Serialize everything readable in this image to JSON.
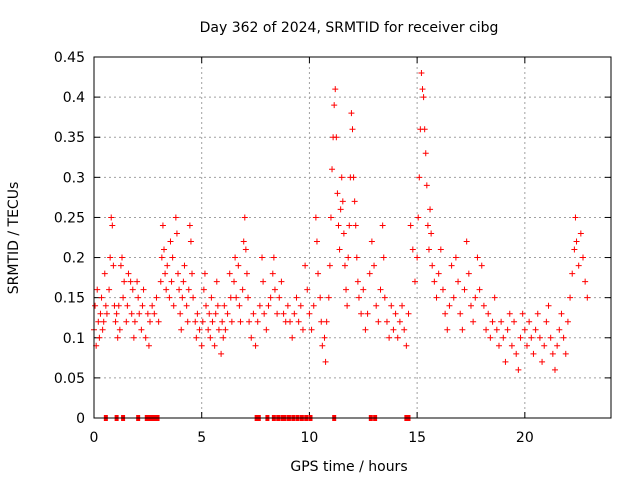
{
  "chart_data": {
    "type": "scatter",
    "title": "Day 362 of 2024, SRMTID for receiver cibg",
    "xlabel": "GPS time / hours",
    "ylabel": "SRMTID / TECUs",
    "xlim": [
      0,
      24
    ],
    "ylim": [
      0,
      0.45
    ],
    "xticks": [
      0,
      5,
      10,
      15,
      20
    ],
    "xtick_labels": [
      "0",
      "5",
      "10",
      "15",
      "20"
    ],
    "yticks": [
      0,
      0.05,
      0.1,
      0.15,
      0.2,
      0.25,
      0.3,
      0.35,
      0.4,
      0.45
    ],
    "ytick_labels": [
      "0",
      "0.05",
      "0.1",
      "0.15",
      "0.2",
      "0.25",
      "0.3",
      "0.35",
      "0.4",
      "0.45"
    ],
    "grid": true,
    "marker": "+",
    "color": "#ff0000",
    "series": [
      {
        "name": "SRMTID",
        "points": [
          [
            0.0,
            0.11
          ],
          [
            0.05,
            0.14
          ],
          [
            0.1,
            0.09
          ],
          [
            0.15,
            0.16
          ],
          [
            0.2,
            0.12
          ],
          [
            0.25,
            0.1
          ],
          [
            0.3,
            0.13
          ],
          [
            0.35,
            0.15
          ],
          [
            0.4,
            0.11
          ],
          [
            0.45,
            0.12
          ],
          [
            0.5,
            0.18
          ],
          [
            0.55,
            0.14
          ],
          [
            0.6,
            0.13
          ],
          [
            0.7,
            0.16
          ],
          [
            0.75,
            0.2
          ],
          [
            0.8,
            0.25
          ],
          [
            0.85,
            0.24
          ],
          [
            0.9,
            0.19
          ],
          [
            0.95,
            0.14
          ],
          [
            1.0,
            0.12
          ],
          [
            1.05,
            0.13
          ],
          [
            1.1,
            0.1
          ],
          [
            1.15,
            0.14
          ],
          [
            1.2,
            0.11
          ],
          [
            1.25,
            0.19
          ],
          [
            1.3,
            0.2
          ],
          [
            1.35,
            0.15
          ],
          [
            1.4,
            0.17
          ],
          [
            1.5,
            0.12
          ],
          [
            1.55,
            0.14
          ],
          [
            1.6,
            0.18
          ],
          [
            1.7,
            0.17
          ],
          [
            1.75,
            0.13
          ],
          [
            1.8,
            0.16
          ],
          [
            1.85,
            0.1
          ],
          [
            1.9,
            0.12
          ],
          [
            2.0,
            0.17
          ],
          [
            2.05,
            0.15
          ],
          [
            2.1,
            0.13
          ],
          [
            2.2,
            0.11
          ],
          [
            2.25,
            0.14
          ],
          [
            2.3,
            0.16
          ],
          [
            2.4,
            0.1
          ],
          [
            2.5,
            0.13
          ],
          [
            2.55,
            0.09
          ],
          [
            2.6,
            0.12
          ],
          [
            2.7,
            0.14
          ],
          [
            2.8,
            0.13
          ],
          [
            2.9,
            0.15
          ],
          [
            3.0,
            0.12
          ],
          [
            3.1,
            0.17
          ],
          [
            3.15,
            0.2
          ],
          [
            3.2,
            0.24
          ],
          [
            3.25,
            0.21
          ],
          [
            3.3,
            0.18
          ],
          [
            3.35,
            0.16
          ],
          [
            3.4,
            0.19
          ],
          [
            3.5,
            0.15
          ],
          [
            3.55,
            0.22
          ],
          [
            3.6,
            0.17
          ],
          [
            3.65,
            0.2
          ],
          [
            3.7,
            0.14
          ],
          [
            3.8,
            0.25
          ],
          [
            3.85,
            0.23
          ],
          [
            3.9,
            0.18
          ],
          [
            3.95,
            0.16
          ],
          [
            4.0,
            0.13
          ],
          [
            4.05,
            0.11
          ],
          [
            4.1,
            0.15
          ],
          [
            4.15,
            0.17
          ],
          [
            4.2,
            0.19
          ],
          [
            4.3,
            0.14
          ],
          [
            4.35,
            0.12
          ],
          [
            4.4,
            0.16
          ],
          [
            4.45,
            0.24
          ],
          [
            4.5,
            0.22
          ],
          [
            4.55,
            0.18
          ],
          [
            4.6,
            0.15
          ],
          [
            4.7,
            0.12
          ],
          [
            4.75,
            0.1
          ],
          [
            4.8,
            0.13
          ],
          [
            4.9,
            0.11
          ],
          [
            5.0,
            0.09
          ],
          [
            5.05,
            0.12
          ],
          [
            5.1,
            0.16
          ],
          [
            5.15,
            0.18
          ],
          [
            5.2,
            0.14
          ],
          [
            5.3,
            0.11
          ],
          [
            5.35,
            0.13
          ],
          [
            5.4,
            0.1
          ],
          [
            5.45,
            0.15
          ],
          [
            5.5,
            0.12
          ],
          [
            5.6,
            0.09
          ],
          [
            5.65,
            0.13
          ],
          [
            5.7,
            0.17
          ],
          [
            5.75,
            0.14
          ],
          [
            5.8,
            0.11
          ],
          [
            5.9,
            0.08
          ],
          [
            5.95,
            0.12
          ],
          [
            6.0,
            0.1
          ],
          [
            6.05,
            0.14
          ],
          [
            6.1,
            0.11
          ],
          [
            6.2,
            0.13
          ],
          [
            6.3,
            0.18
          ],
          [
            6.35,
            0.15
          ],
          [
            6.4,
            0.12
          ],
          [
            6.5,
            0.17
          ],
          [
            6.55,
            0.2
          ],
          [
            6.6,
            0.15
          ],
          [
            6.7,
            0.19
          ],
          [
            6.75,
            0.14
          ],
          [
            6.8,
            0.12
          ],
          [
            6.9,
            0.16
          ],
          [
            6.95,
            0.22
          ],
          [
            7.0,
            0.25
          ],
          [
            7.05,
            0.21
          ],
          [
            7.1,
            0.18
          ],
          [
            7.15,
            0.15
          ],
          [
            7.2,
            0.12
          ],
          [
            7.3,
            0.1
          ],
          [
            7.4,
            0.13
          ],
          [
            7.5,
            0.09
          ],
          [
            7.6,
            0.12
          ],
          [
            7.7,
            0.14
          ],
          [
            7.8,
            0.2
          ],
          [
            7.85,
            0.17
          ],
          [
            7.9,
            0.13
          ],
          [
            8.0,
            0.11
          ],
          [
            8.1,
            0.14
          ],
          [
            8.2,
            0.15
          ],
          [
            8.3,
            0.18
          ],
          [
            8.35,
            0.2
          ],
          [
            8.4,
            0.16
          ],
          [
            8.5,
            0.13
          ],
          [
            8.6,
            0.15
          ],
          [
            8.7,
            0.17
          ],
          [
            8.8,
            0.13
          ],
          [
            8.9,
            0.12
          ],
          [
            9.0,
            0.14
          ],
          [
            9.1,
            0.12
          ],
          [
            9.2,
            0.1
          ],
          [
            9.3,
            0.13
          ],
          [
            9.4,
            0.15
          ],
          [
            9.5,
            0.12
          ],
          [
            9.6,
            0.14
          ],
          [
            9.7,
            0.11
          ],
          [
            9.8,
            0.19
          ],
          [
            9.9,
            0.16
          ],
          [
            10.0,
            0.13
          ],
          [
            10.1,
            0.11
          ],
          [
            10.2,
            0.14
          ],
          [
            10.3,
            0.25
          ],
          [
            10.35,
            0.22
          ],
          [
            10.4,
            0.18
          ],
          [
            10.5,
            0.15
          ],
          [
            10.55,
            0.12
          ],
          [
            10.6,
            0.09
          ],
          [
            10.7,
            0.1
          ],
          [
            10.75,
            0.07
          ],
          [
            10.8,
            0.12
          ],
          [
            10.9,
            0.15
          ],
          [
            10.95,
            0.19
          ],
          [
            11.0,
            0.25
          ],
          [
            11.05,
            0.31
          ],
          [
            11.1,
            0.35
          ],
          [
            11.15,
            0.39
          ],
          [
            11.2,
            0.41
          ],
          [
            11.25,
            0.35
          ],
          [
            11.3,
            0.28
          ],
          [
            11.35,
            0.24
          ],
          [
            11.4,
            0.21
          ],
          [
            11.45,
            0.26
          ],
          [
            11.5,
            0.3
          ],
          [
            11.55,
            0.27
          ],
          [
            11.6,
            0.23
          ],
          [
            11.65,
            0.19
          ],
          [
            11.7,
            0.16
          ],
          [
            11.75,
            0.14
          ],
          [
            11.8,
            0.2
          ],
          [
            11.85,
            0.24
          ],
          [
            11.9,
            0.3
          ],
          [
            11.95,
            0.38
          ],
          [
            12.0,
            0.36
          ],
          [
            12.05,
            0.3
          ],
          [
            12.1,
            0.27
          ],
          [
            12.15,
            0.24
          ],
          [
            12.2,
            0.2
          ],
          [
            12.25,
            0.17
          ],
          [
            12.3,
            0.15
          ],
          [
            12.4,
            0.13
          ],
          [
            12.5,
            0.16
          ],
          [
            12.6,
            0.11
          ],
          [
            12.7,
            0.13
          ],
          [
            12.8,
            0.18
          ],
          [
            12.9,
            0.22
          ],
          [
            13.0,
            0.19
          ],
          [
            13.1,
            0.14
          ],
          [
            13.2,
            0.12
          ],
          [
            13.3,
            0.16
          ],
          [
            13.4,
            0.24
          ],
          [
            13.45,
            0.2
          ],
          [
            13.5,
            0.15
          ],
          [
            13.6,
            0.12
          ],
          [
            13.7,
            0.1
          ],
          [
            13.8,
            0.14
          ],
          [
            13.9,
            0.11
          ],
          [
            14.0,
            0.13
          ],
          [
            14.1,
            0.1
          ],
          [
            14.2,
            0.12
          ],
          [
            14.3,
            0.14
          ],
          [
            14.4,
            0.11
          ],
          [
            14.5,
            0.09
          ],
          [
            14.6,
            0.13
          ],
          [
            14.7,
            0.24
          ],
          [
            14.8,
            0.21
          ],
          [
            14.9,
            0.17
          ],
          [
            15.0,
            0.2
          ],
          [
            15.05,
            0.25
          ],
          [
            15.1,
            0.3
          ],
          [
            15.15,
            0.36
          ],
          [
            15.2,
            0.43
          ],
          [
            15.25,
            0.41
          ],
          [
            15.3,
            0.4
          ],
          [
            15.35,
            0.36
          ],
          [
            15.4,
            0.33
          ],
          [
            15.45,
            0.29
          ],
          [
            15.5,
            0.24
          ],
          [
            15.55,
            0.21
          ],
          [
            15.6,
            0.26
          ],
          [
            15.65,
            0.23
          ],
          [
            15.7,
            0.19
          ],
          [
            15.8,
            0.17
          ],
          [
            15.9,
            0.15
          ],
          [
            16.0,
            0.18
          ],
          [
            16.1,
            0.21
          ],
          [
            16.2,
            0.16
          ],
          [
            16.3,
            0.13
          ],
          [
            16.4,
            0.11
          ],
          [
            16.5,
            0.14
          ],
          [
            16.6,
            0.19
          ],
          [
            16.7,
            0.15
          ],
          [
            16.8,
            0.2
          ],
          [
            16.9,
            0.17
          ],
          [
            17.0,
            0.13
          ],
          [
            17.1,
            0.11
          ],
          [
            17.2,
            0.16
          ],
          [
            17.3,
            0.22
          ],
          [
            17.4,
            0.18
          ],
          [
            17.5,
            0.14
          ],
          [
            17.6,
            0.12
          ],
          [
            17.7,
            0.15
          ],
          [
            17.8,
            0.2
          ],
          [
            17.9,
            0.16
          ],
          [
            18.0,
            0.19
          ],
          [
            18.1,
            0.14
          ],
          [
            18.2,
            0.11
          ],
          [
            18.3,
            0.13
          ],
          [
            18.4,
            0.1
          ],
          [
            18.5,
            0.12
          ],
          [
            18.6,
            0.15
          ],
          [
            18.7,
            0.11
          ],
          [
            18.8,
            0.09
          ],
          [
            18.9,
            0.12
          ],
          [
            19.0,
            0.1
          ],
          [
            19.1,
            0.07
          ],
          [
            19.2,
            0.11
          ],
          [
            19.3,
            0.13
          ],
          [
            19.4,
            0.09
          ],
          [
            19.5,
            0.12
          ],
          [
            19.6,
            0.08
          ],
          [
            19.7,
            0.06
          ],
          [
            19.8,
            0.1
          ],
          [
            19.9,
            0.13
          ],
          [
            20.0,
            0.11
          ],
          [
            20.1,
            0.09
          ],
          [
            20.2,
            0.12
          ],
          [
            20.3,
            0.1
          ],
          [
            20.4,
            0.08
          ],
          [
            20.5,
            0.11
          ],
          [
            20.6,
            0.13
          ],
          [
            20.7,
            0.1
          ],
          [
            20.8,
            0.07
          ],
          [
            20.9,
            0.09
          ],
          [
            21.0,
            0.12
          ],
          [
            21.1,
            0.14
          ],
          [
            21.2,
            0.1
          ],
          [
            21.3,
            0.08
          ],
          [
            21.4,
            0.06
          ],
          [
            21.5,
            0.09
          ],
          [
            21.6,
            0.11
          ],
          [
            21.7,
            0.13
          ],
          [
            21.8,
            0.1
          ],
          [
            21.9,
            0.08
          ],
          [
            22.0,
            0.12
          ],
          [
            22.1,
            0.15
          ],
          [
            22.2,
            0.18
          ],
          [
            22.3,
            0.21
          ],
          [
            22.35,
            0.25
          ],
          [
            22.4,
            0.22
          ],
          [
            22.5,
            0.19
          ],
          [
            22.6,
            0.23
          ],
          [
            22.7,
            0.2
          ],
          [
            22.8,
            0.17
          ],
          [
            22.9,
            0.15
          ]
        ]
      }
    ],
    "zero_points_x": [
      0.55,
      1.05,
      1.35,
      2.05,
      2.45,
      2.55,
      2.65,
      2.8,
      2.95,
      7.55,
      7.65,
      8.05,
      8.35,
      8.55,
      8.75,
      8.85,
      9.05,
      9.25,
      9.45,
      9.65,
      9.85,
      10.05,
      11.15,
      12.85,
      13.05,
      14.5,
      14.6
    ]
  }
}
